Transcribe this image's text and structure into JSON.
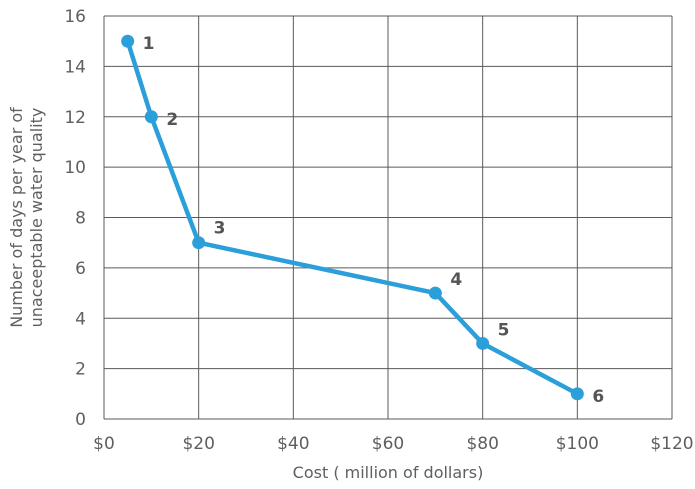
{
  "chart_data": {
    "type": "line",
    "xlabel": "Cost ( million of dollars)",
    "ylabel_lines": [
      "Number of days per year of",
      "unaceeptable water quality"
    ],
    "xlim": [
      0,
      120
    ],
    "ylim": [
      0,
      16
    ],
    "x_ticks": [
      0,
      20,
      40,
      60,
      80,
      100,
      120
    ],
    "x_tick_labels": [
      "$0",
      "$20",
      "$40",
      "$60",
      "$80",
      "$100",
      "$120"
    ],
    "y_ticks": [
      0,
      2,
      4,
      6,
      8,
      10,
      12,
      14,
      16
    ],
    "y_tick_labels": [
      "0",
      "2",
      "4",
      "6",
      "8",
      "10",
      "12",
      "14",
      "16"
    ],
    "grid": true,
    "series": [
      {
        "color": "#2b9fd9",
        "points": [
          {
            "label": "1",
            "x": 5,
            "y": 15
          },
          {
            "label": "2",
            "x": 10,
            "y": 12
          },
          {
            "label": "3",
            "x": 20,
            "y": 7
          },
          {
            "label": "4",
            "x": 70,
            "y": 5
          },
          {
            "label": "5",
            "x": 80,
            "y": 3
          },
          {
            "label": "6",
            "x": 100,
            "y": 1
          }
        ]
      }
    ]
  }
}
